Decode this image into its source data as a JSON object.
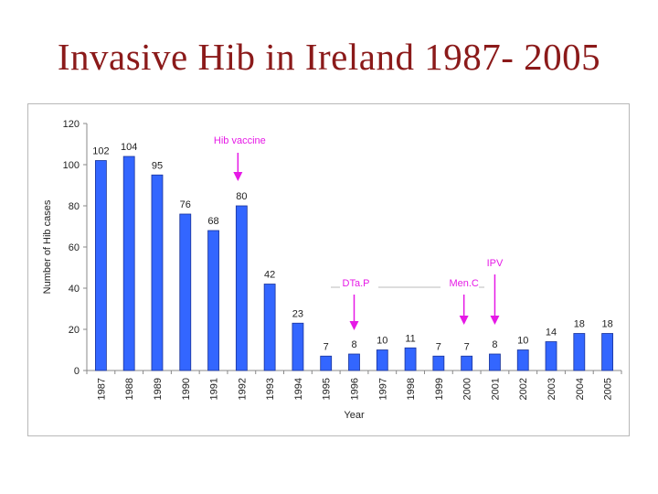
{
  "page": {
    "title": "Invasive Hib in Ireland 1987- 2005"
  },
  "colors": {
    "bar": "#3366ff",
    "bar_stroke": "#1a3399",
    "annotation": "#e619e6",
    "title": "#8b1a1a"
  },
  "chart_data": {
    "type": "bar",
    "title": "",
    "xlabel": "Year",
    "ylabel": "Number of Hib cases",
    "ylim": [
      0,
      120
    ],
    "yticks": [
      0,
      20,
      40,
      60,
      80,
      100,
      120
    ],
    "grid": false,
    "legend": "none",
    "categories": [
      "1987",
      "1988",
      "1989",
      "1990",
      "1991",
      "1992",
      "1993",
      "1994",
      "1995",
      "1996",
      "1997",
      "1998",
      "1999",
      "2000",
      "2001",
      "2002",
      "2003",
      "2004",
      "2005"
    ],
    "values": [
      102,
      104,
      95,
      76,
      68,
      80,
      42,
      23,
      7,
      8,
      10,
      11,
      7,
      7,
      8,
      10,
      14,
      18,
      18
    ],
    "annotations": [
      {
        "text": "Hib vaccine",
        "category": "1992"
      },
      {
        "text": "DTa.P",
        "category": "1996"
      },
      {
        "text": "Men.C",
        "category": "2000"
      },
      {
        "text": "IPV",
        "category": "2001"
      }
    ]
  }
}
